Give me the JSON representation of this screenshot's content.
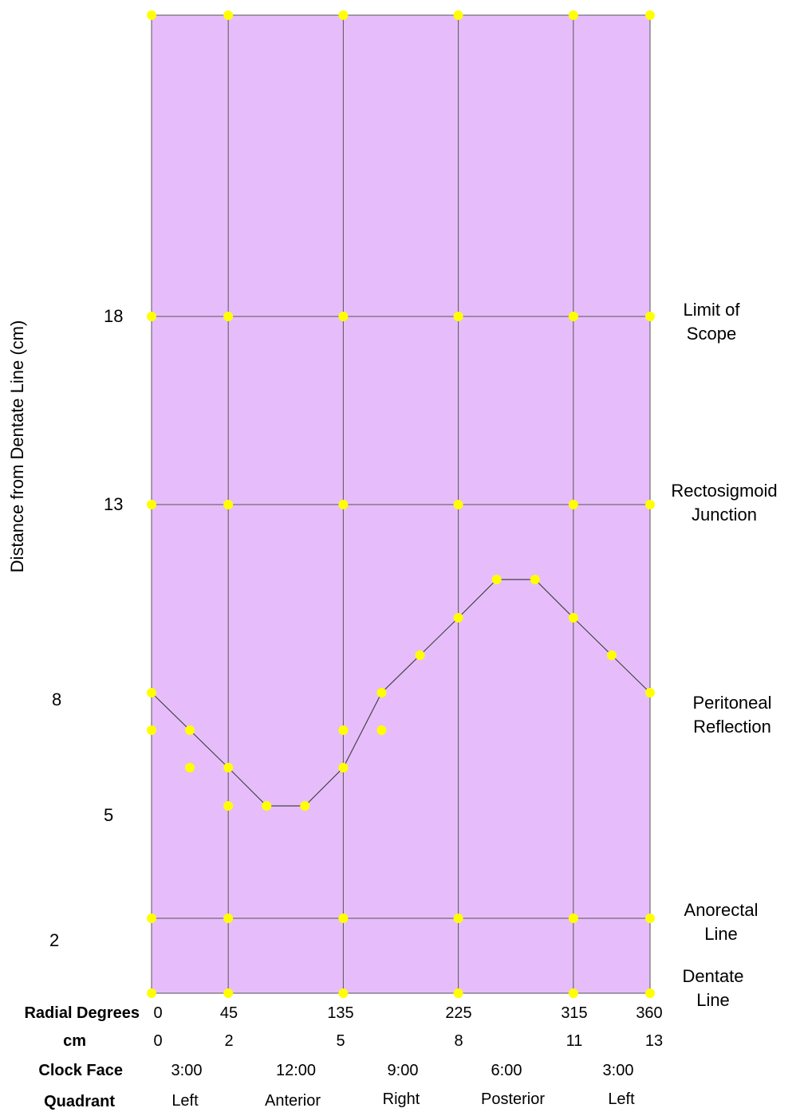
{
  "chart_data": {
    "type": "line",
    "ylabel": "Distance from Dentate Line (cm)",
    "y_ticks": [
      {
        "label": "18"
      },
      {
        "label": "13"
      },
      {
        "label": "8"
      },
      {
        "label": "5"
      },
      {
        "label": "2"
      }
    ],
    "right_labels": [
      {
        "line1": "Limit of",
        "line2": "Scope"
      },
      {
        "line1": "Rectosigmoid",
        "line2": "Junction"
      },
      {
        "line1": "Peritoneal",
        "line2": "Reflection"
      },
      {
        "line1": "Anorectal",
        "line2": "Line"
      },
      {
        "line1": "Dentate",
        "line2": "Line"
      }
    ],
    "bottom_rows": [
      {
        "header": "Radial Degrees",
        "values": [
          "0",
          "45",
          "135",
          "225",
          "315",
          "360"
        ]
      },
      {
        "header": "cm",
        "values": [
          "0",
          "2",
          "5",
          "8",
          "11",
          "13"
        ]
      },
      {
        "header": "Clock Face",
        "values": [
          "3:00",
          "12:00",
          "9:00",
          "6:00",
          "3:00"
        ]
      },
      {
        "header": "Quadrant",
        "values": [
          "Left",
          "Anterior",
          "Right",
          "Posterior",
          "Left"
        ]
      }
    ],
    "x_range": [
      0,
      13
    ],
    "grid_columns_cm": [
      0,
      2,
      5,
      8,
      11,
      13
    ],
    "grid_rows": [
      "top",
      "18",
      "13",
      "anorectal",
      "dentate"
    ],
    "series": [
      {
        "connected": true,
        "points": [
          [
            0,
            8
          ],
          [
            1,
            7
          ],
          [
            2,
            6
          ],
          [
            3,
            5
          ],
          [
            4,
            5
          ],
          [
            5,
            6
          ],
          [
            6,
            8
          ],
          [
            7,
            9
          ],
          [
            8,
            10
          ],
          [
            9,
            11
          ],
          [
            10,
            11
          ],
          [
            11,
            10
          ],
          [
            12,
            9
          ],
          [
            13,
            8
          ]
        ]
      },
      {
        "connected": false,
        "points": [
          [
            0,
            7
          ],
          [
            1,
            6
          ],
          [
            2,
            5
          ],
          [
            5,
            7
          ],
          [
            6,
            7
          ]
        ]
      }
    ],
    "colors": {
      "background": "#e6bdfa",
      "grid": "#555555",
      "marker": "#ffff00",
      "line": "#444444"
    }
  }
}
